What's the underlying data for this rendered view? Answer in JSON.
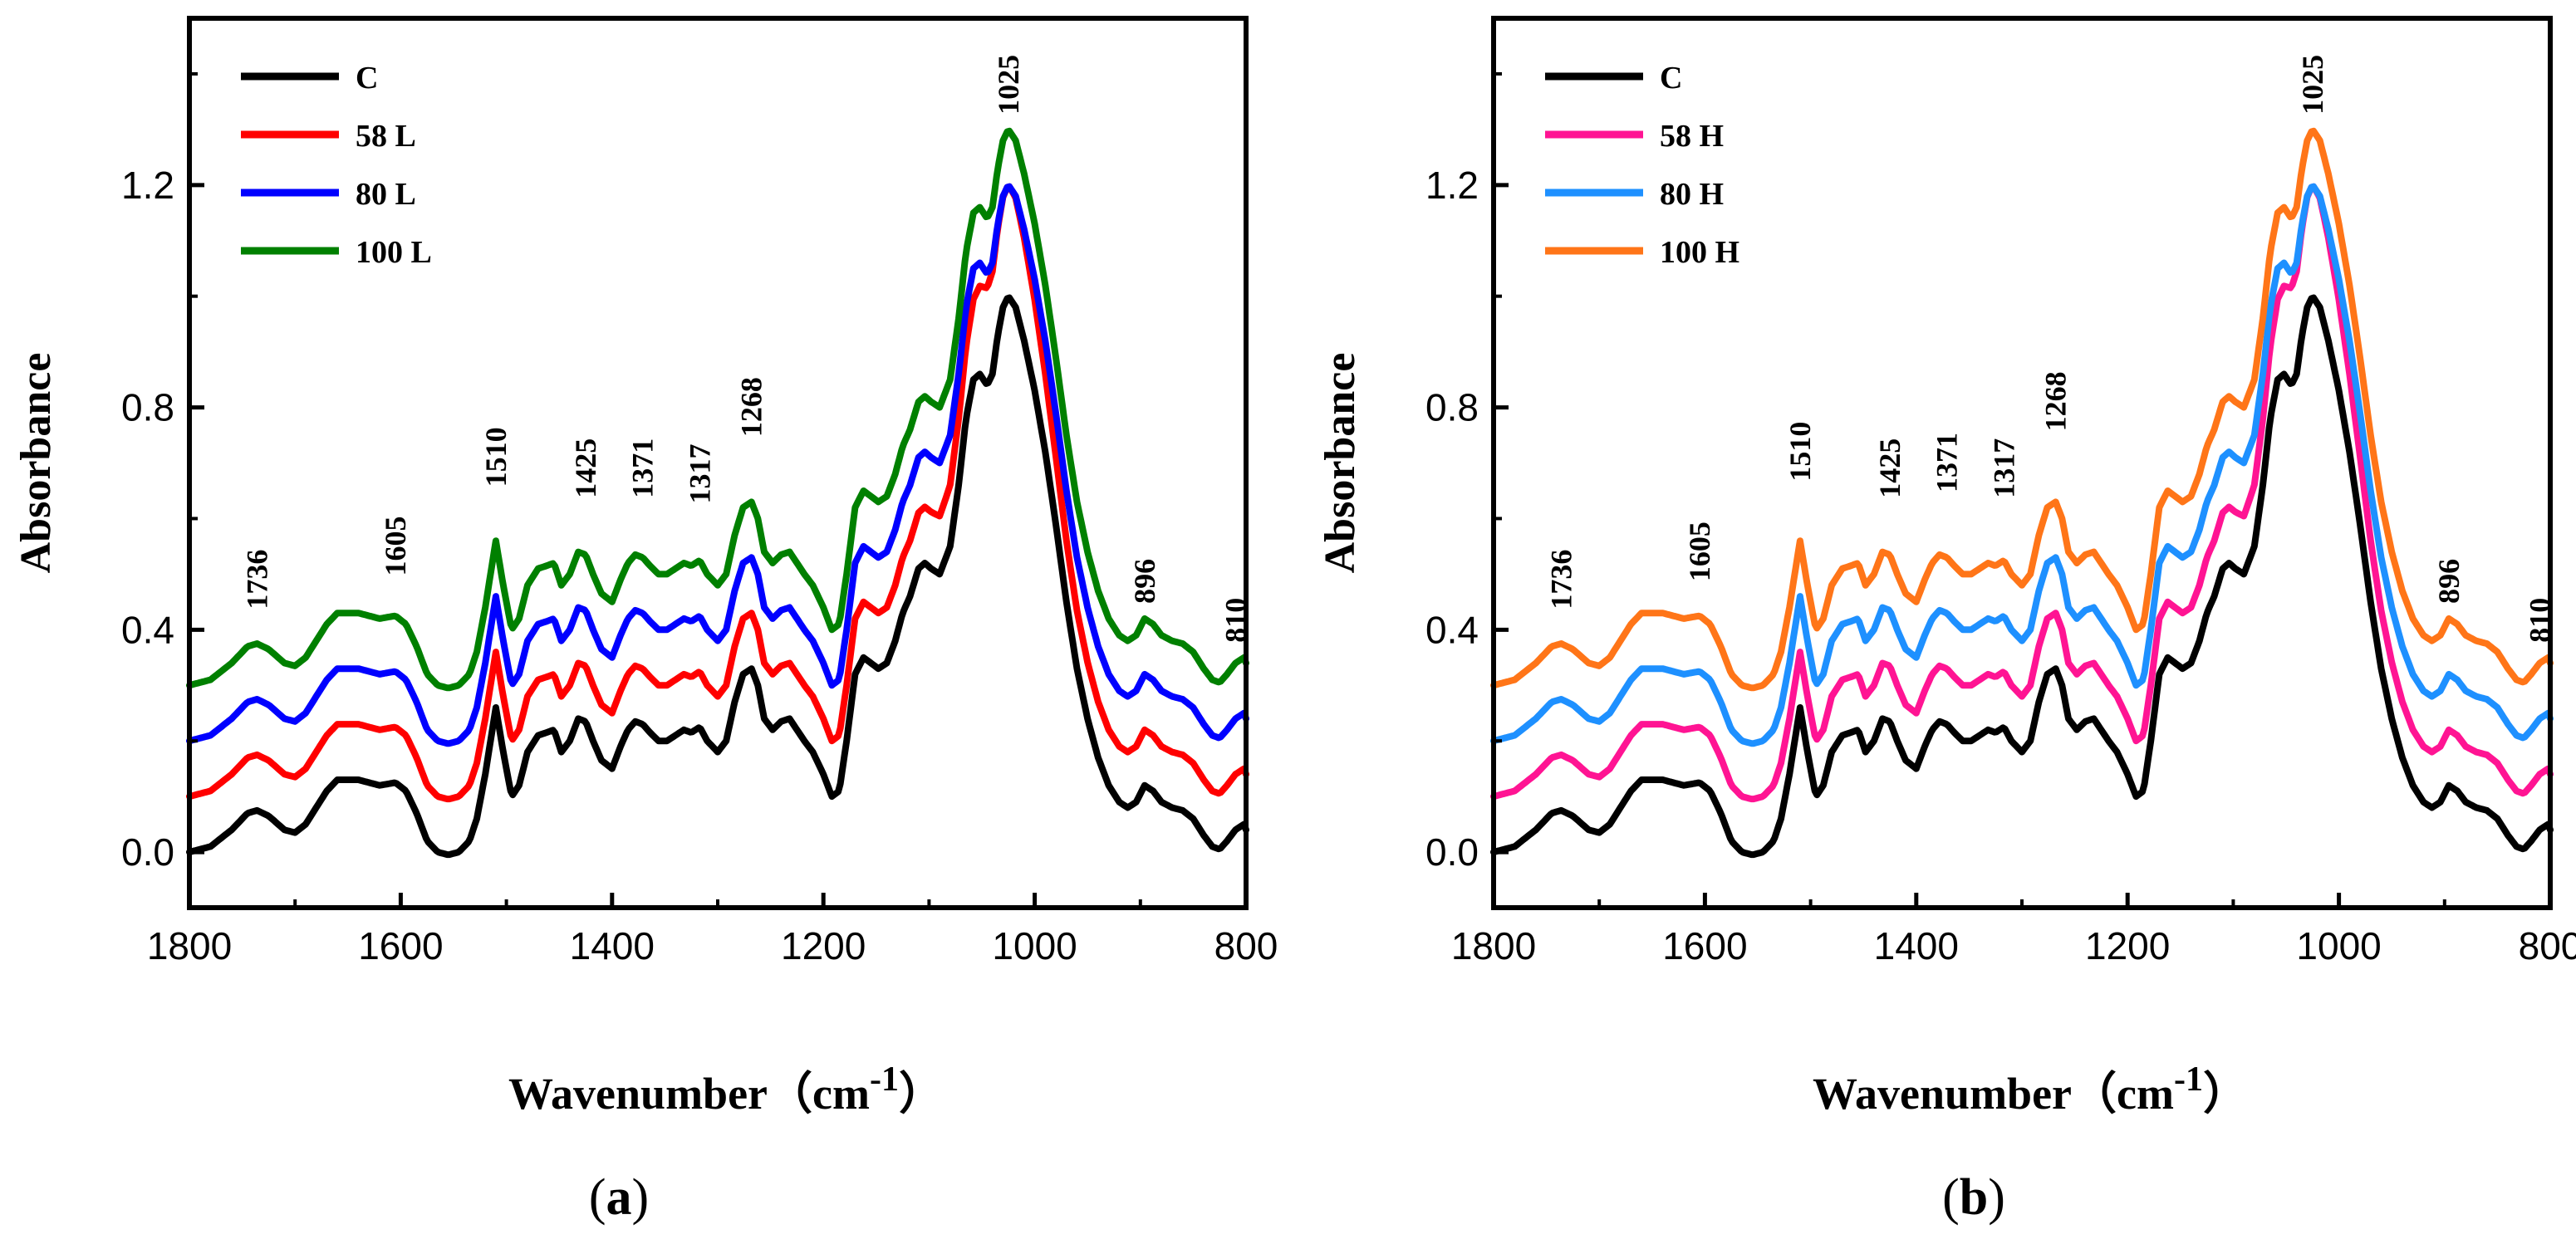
{
  "chart_data": [
    {
      "type": "line",
      "panel_caption": "(a)",
      "caption_open": "(",
      "caption_letter": "a",
      "caption_close": ")",
      "xlabel": "Wavenumber",
      "xlabel_unit_open": "（cm",
      "xlabel_unit_sup": "-1",
      "xlabel_unit_close": "）",
      "ylabel": "Absorbance",
      "xlim": [
        1800,
        800
      ],
      "ylim": [
        -0.1,
        1.5
      ],
      "x_ticks": [
        1800,
        1600,
        1400,
        1200,
        1000,
        800
      ],
      "x_tick_labels": [
        "1800",
        "1600",
        "1400",
        "1200",
        "1000",
        "800"
      ],
      "y_ticks": [
        0.0,
        0.4,
        0.8,
        1.2
      ],
      "y_tick_labels": [
        "0.0",
        "0.4",
        "0.8",
        "1.2"
      ],
      "legend_position": "top-left",
      "peak_labels": [
        {
          "x": 1736,
          "y": 0.41,
          "text": "1736"
        },
        {
          "x": 1605,
          "y": 0.47,
          "text": "1605"
        },
        {
          "x": 1510,
          "y": 0.63,
          "text": "1510"
        },
        {
          "x": 1425,
          "y": 0.61,
          "text": "1425"
        },
        {
          "x": 1371,
          "y": 0.61,
          "text": "1371"
        },
        {
          "x": 1317,
          "y": 0.6,
          "text": "1317"
        },
        {
          "x": 1268,
          "y": 0.72,
          "text": "1268"
        },
        {
          "x": 1025,
          "y": 1.3,
          "text": "1025"
        },
        {
          "x": 896,
          "y": 0.42,
          "text": "896"
        },
        {
          "x": 810,
          "y": 0.35,
          "text": "810"
        }
      ],
      "series": [
        {
          "name": "C",
          "offset": 0.0,
          "color": "#000000"
        },
        {
          "name": "58 L",
          "offset": 0.1,
          "color": "#ff0000",
          "peak_extra": 0.1
        },
        {
          "name": "80 L",
          "offset": 0.2,
          "color": "#0000ff",
          "peak_extra": 0.0
        },
        {
          "name": "100 L",
          "offset": 0.3,
          "color": "#008000",
          "peak_extra": 0.0
        }
      ]
    },
    {
      "type": "line",
      "panel_caption": "(b)",
      "caption_open": "(",
      "caption_letter": "b",
      "caption_close": ")",
      "xlabel": "Wavenumber",
      "xlabel_unit_open": "（cm",
      "xlabel_unit_sup": "-1",
      "xlabel_unit_close": "）",
      "ylabel": "Absorbance",
      "xlim": [
        1800,
        800
      ],
      "ylim": [
        -0.1,
        1.5
      ],
      "x_ticks": [
        1800,
        1600,
        1400,
        1200,
        1000,
        800
      ],
      "x_tick_labels": [
        "1800",
        "1600",
        "1400",
        "1200",
        "1000",
        "800"
      ],
      "y_ticks": [
        0.0,
        0.4,
        0.8,
        1.2
      ],
      "y_tick_labels": [
        "0.0",
        "0.4",
        "0.8",
        "1.2"
      ],
      "legend_position": "top-left",
      "peak_labels": [
        {
          "x": 1736,
          "y": 0.41,
          "text": "1736"
        },
        {
          "x": 1605,
          "y": 0.46,
          "text": "1605"
        },
        {
          "x": 1510,
          "y": 0.64,
          "text": "1510"
        },
        {
          "x": 1425,
          "y": 0.61,
          "text": "1425"
        },
        {
          "x": 1371,
          "y": 0.62,
          "text": "1371"
        },
        {
          "x": 1317,
          "y": 0.61,
          "text": "1317"
        },
        {
          "x": 1268,
          "y": 0.73,
          "text": "1268"
        },
        {
          "x": 1025,
          "y": 1.3,
          "text": "1025"
        },
        {
          "x": 896,
          "y": 0.42,
          "text": "896"
        },
        {
          "x": 810,
          "y": 0.35,
          "text": "810"
        }
      ],
      "series": [
        {
          "name": "C",
          "offset": 0.0,
          "color": "#000000"
        },
        {
          "name": "58 H",
          "offset": 0.1,
          "color": "#ff1493",
          "peak_extra": 0.1
        },
        {
          "name": "80 H",
          "offset": 0.2,
          "color": "#1e90ff",
          "peak_extra": 0.0
        },
        {
          "name": "100 H",
          "offset": 0.3,
          "color": "#ff7518",
          "peak_extra": 0.0
        }
      ]
    }
  ],
  "spectrum_base": {
    "x": [
      1800,
      1780,
      1760,
      1745,
      1736,
      1725,
      1710,
      1700,
      1690,
      1680,
      1670,
      1660,
      1650,
      1640,
      1630,
      1620,
      1605,
      1595,
      1585,
      1575,
      1565,
      1555,
      1545,
      1535,
      1528,
      1520,
      1510,
      1503,
      1495,
      1488,
      1480,
      1470,
      1462,
      1455,
      1448,
      1440,
      1432,
      1425,
      1418,
      1410,
      1400,
      1392,
      1385,
      1378,
      1371,
      1364,
      1356,
      1348,
      1340,
      1332,
      1325,
      1317,
      1310,
      1300,
      1292,
      1284,
      1276,
      1268,
      1262,
      1256,
      1248,
      1240,
      1232,
      1225,
      1218,
      1210,
      1200,
      1192,
      1185,
      1178,
      1170,
      1162,
      1155,
      1148,
      1140,
      1132,
      1125,
      1118,
      1110,
      1104,
      1098,
      1090,
      1080,
      1072,
      1065,
      1058,
      1052,
      1045,
      1040,
      1035,
      1030,
      1025,
      1018,
      1010,
      1000,
      990,
      980,
      970,
      960,
      950,
      940,
      930,
      920,
      912,
      904,
      896,
      888,
      880,
      870,
      860,
      850,
      840,
      832,
      825,
      818,
      810,
      802,
      800
    ],
    "y": [
      0.0,
      0.01,
      0.04,
      0.07,
      0.075,
      0.065,
      0.04,
      0.035,
      0.05,
      0.08,
      0.11,
      0.13,
      0.13,
      0.13,
      0.125,
      0.12,
      0.125,
      0.11,
      0.07,
      0.02,
      0.0,
      -0.005,
      0.0,
      0.02,
      0.06,
      0.14,
      0.26,
      0.18,
      0.1,
      0.12,
      0.18,
      0.21,
      0.215,
      0.22,
      0.18,
      0.2,
      0.24,
      0.235,
      0.2,
      0.165,
      0.15,
      0.19,
      0.22,
      0.235,
      0.23,
      0.215,
      0.2,
      0.2,
      0.21,
      0.22,
      0.215,
      0.225,
      0.2,
      0.18,
      0.2,
      0.27,
      0.32,
      0.33,
      0.3,
      0.24,
      0.22,
      0.235,
      0.24,
      0.22,
      0.2,
      0.18,
      0.14,
      0.1,
      0.11,
      0.2,
      0.32,
      0.35,
      0.34,
      0.33,
      0.34,
      0.38,
      0.43,
      0.46,
      0.51,
      0.52,
      0.51,
      0.5,
      0.55,
      0.66,
      0.78,
      0.85,
      0.86,
      0.84,
      0.86,
      0.93,
      0.98,
      1.0,
      0.98,
      0.92,
      0.83,
      0.72,
      0.59,
      0.45,
      0.33,
      0.24,
      0.17,
      0.12,
      0.09,
      0.08,
      0.09,
      0.12,
      0.11,
      0.09,
      0.08,
      0.075,
      0.06,
      0.03,
      0.01,
      0.005,
      0.02,
      0.04,
      0.05,
      0.04
    ]
  },
  "legend_label_a": [
    "C",
    "58 L",
    "80 L",
    "100 L"
  ],
  "legend_label_b": [
    "C",
    "58 H",
    "80 H",
    "100 H"
  ]
}
